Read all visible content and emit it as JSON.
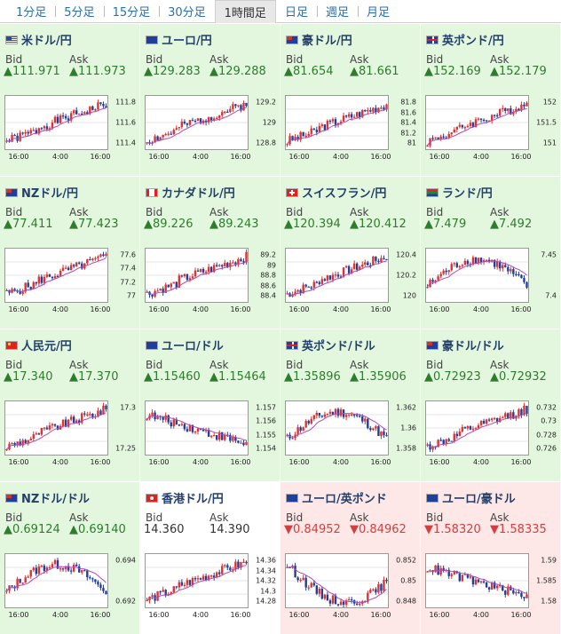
{
  "tabs": [
    "1分足",
    "5分足",
    "15分足",
    "30分足",
    "1時間足",
    "日足",
    "週足",
    "月足"
  ],
  "active_tab": 4,
  "labels": {
    "bid": "Bid",
    "ask": "Ask"
  },
  "x_ticks": [
    "16:00",
    "4:00",
    "16:00"
  ],
  "cards": [
    {
      "pair": "米ドル/円",
      "flag": "us",
      "dir": "up",
      "bid": "▲111.971",
      "ask": "▲111.973",
      "yticks": [
        "111.8",
        "111.6",
        "111.4"
      ],
      "seed": 1,
      "trend": "up"
    },
    {
      "pair": "ユーロ/円",
      "flag": "eu",
      "dir": "up",
      "bid": "▲129.283",
      "ask": "▲129.288",
      "yticks": [
        "129.2",
        "129",
        "128.8"
      ],
      "seed": 2,
      "trend": "up"
    },
    {
      "pair": "豪ドル/円",
      "flag": "au",
      "dir": "up",
      "bid": "▲81.654",
      "ask": "▲81.661",
      "yticks": [
        "81.8",
        "81.6",
        "81.4",
        "81.2",
        "81"
      ],
      "seed": 3,
      "trend": "up"
    },
    {
      "pair": "英ポンド/円",
      "flag": "gb",
      "dir": "up",
      "bid": "▲152.169",
      "ask": "▲152.179",
      "yticks": [
        "152",
        "151.5",
        "151"
      ],
      "seed": 4,
      "trend": "up"
    },
    {
      "pair": "NZドル/円",
      "flag": "nz",
      "dir": "up",
      "bid": "▲77.411",
      "ask": "▲77.423",
      "yticks": [
        "77.6",
        "77.4",
        "77.2",
        "77"
      ],
      "seed": 5,
      "trend": "up"
    },
    {
      "pair": "カナダドル/円",
      "flag": "ca",
      "dir": "up",
      "bid": "▲89.226",
      "ask": "▲89.243",
      "yticks": [
        "89.2",
        "89",
        "88.8",
        "88.6",
        "88.4"
      ],
      "seed": 6,
      "trend": "up"
    },
    {
      "pair": "スイスフラン/円",
      "flag": "ch",
      "dir": "up",
      "bid": "▲120.394",
      "ask": "▲120.412",
      "yticks": [
        "120.4",
        "120.2",
        "120"
      ],
      "seed": 7,
      "trend": "up"
    },
    {
      "pair": "ランド/円",
      "flag": "za",
      "dir": "up",
      "bid": "▲7.479",
      "ask": "▲7.492",
      "yticks": [
        "7.45",
        "7.4"
      ],
      "seed": 8,
      "trend": "hump"
    },
    {
      "pair": "人民元/円",
      "flag": "cn",
      "dir": "up",
      "bid": "▲17.340",
      "ask": "▲17.370",
      "yticks": [
        "17.3",
        "17.25"
      ],
      "seed": 9,
      "trend": "up"
    },
    {
      "pair": "ユーロ/ドル",
      "flag": "eu",
      "dir": "up",
      "bid": "▲1.15460",
      "ask": "▲1.15464",
      "yticks": [
        "1.157",
        "1.156",
        "1.155",
        "1.154"
      ],
      "seed": 10,
      "trend": "down"
    },
    {
      "pair": "英ポンド/ドル",
      "flag": "gb",
      "dir": "up",
      "bid": "▲1.35896",
      "ask": "▲1.35906",
      "yticks": [
        "1.362",
        "1.36",
        "1.358"
      ],
      "seed": 11,
      "trend": "hump"
    },
    {
      "pair": "豪ドル/ドル",
      "flag": "au",
      "dir": "up",
      "bid": "▲0.72923",
      "ask": "▲0.72932",
      "yticks": [
        "0.732",
        "0.73",
        "0.728",
        "0.726"
      ],
      "seed": 12,
      "trend": "up"
    },
    {
      "pair": "NZドル/ドル",
      "flag": "nz",
      "dir": "up",
      "bid": "▲0.69124",
      "ask": "▲0.69140",
      "yticks": [
        "0.694",
        "0.692"
      ],
      "seed": 13,
      "trend": "hump"
    },
    {
      "pair": "香港ドル/円",
      "flag": "hk",
      "dir": "flat",
      "bid": "14.360",
      "ask": "14.390",
      "yticks": [
        "14.36",
        "14.34",
        "14.32",
        "14.3",
        "14.28"
      ],
      "seed": 14,
      "trend": "up"
    },
    {
      "pair": "ユーロ/英ポンド",
      "flag": "eu2",
      "dir": "down",
      "bid": "▼0.84952",
      "ask": "▼0.84962",
      "yticks": [
        "0.852",
        "0.85",
        "0.848"
      ],
      "seed": 15,
      "trend": "vdown"
    },
    {
      "pair": "ユーロ/豪ドル",
      "flag": "eu2",
      "dir": "down",
      "bid": "▼1.58320",
      "ask": "▼1.58335",
      "yticks": [
        "1.59",
        "1.585",
        "1.58"
      ],
      "seed": 16,
      "trend": "down"
    }
  ]
}
